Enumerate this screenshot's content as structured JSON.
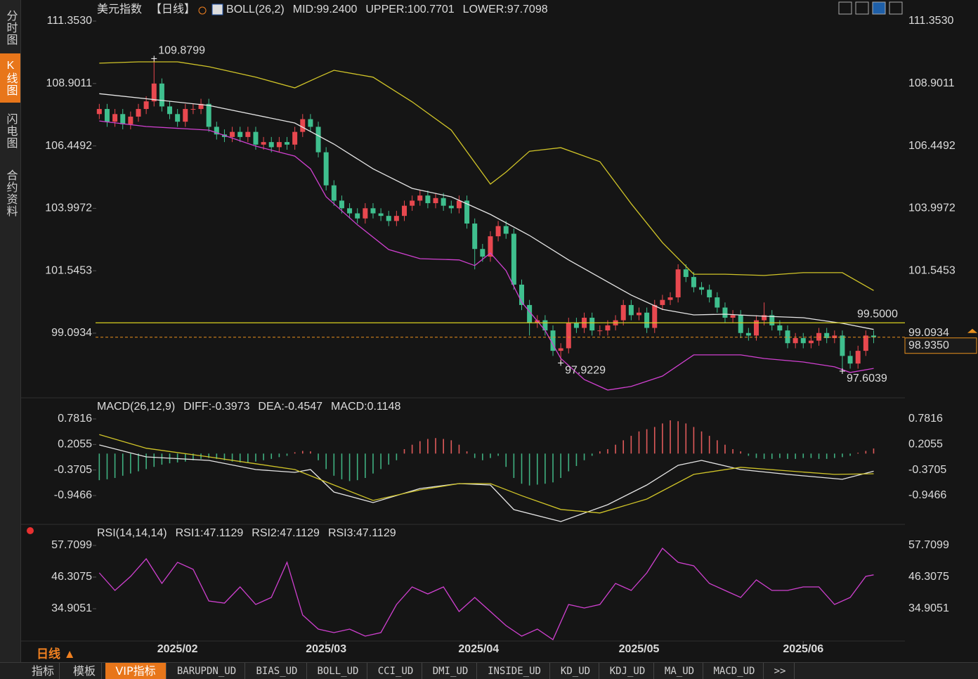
{
  "chart_data": [
    {
      "type": "candlestick",
      "title": "美元指数",
      "period": "【日线】",
      "indicator": "BOLL(26,2)",
      "up_color": "#e8484f",
      "down_color": "#3fbf8e",
      "xlim": [
        -10,
        103
      ],
      "ylim": [
        96.636,
        112.043
      ],
      "yticks": [
        {
          "value": 111.353,
          "label": "111.3530"
        },
        108.9011,
        106.4492,
        103.9972,
        101.5453,
        99.0934
      ],
      "opens": [
        107.7,
        107.9,
        107.4,
        107.7,
        107.3,
        107.6,
        107.9,
        108.2,
        108.9,
        108.0,
        107.7,
        107.4,
        107.9,
        107.9,
        108.1,
        107.2,
        106.9,
        106.8,
        107.0,
        106.8,
        107.0,
        106.5,
        106.6,
        106.4,
        106.6,
        106.5,
        107.0,
        107.5,
        107.2,
        106.2,
        104.9,
        104.3,
        104.0,
        103.8,
        103.6,
        104.0,
        103.8,
        103.7,
        103.5,
        103.7,
        104.1,
        104.3,
        104.5,
        104.2,
        104.4,
        104.1,
        104.0,
        104.3,
        103.4,
        102.4,
        102.1,
        102.9,
        103.3,
        103.0,
        101.0,
        100.2,
        99.5,
        99.6,
        99.2,
        98.4,
        98.5,
        99.5,
        99.3,
        99.7,
        99.2,
        99.2,
        99.4,
        99.6,
        100.2,
        99.8,
        99.9,
        99.3,
        100.2,
        100.4,
        100.5,
        101.6,
        101.3,
        100.9,
        100.8,
        100.5,
        100.1,
        99.7,
        99.8,
        99.1,
        99.0,
        99.6,
        99.8,
        99.4,
        99.2,
        98.7,
        98.9,
        98.7,
        98.8,
        99.1,
        98.9,
        99.0,
        98.2,
        97.9,
        98.4,
        99.0
      ],
      "highs": [
        108.1,
        108.1,
        107.9,
        107.9,
        107.8,
        108.1,
        108.4,
        109.8799,
        109.1,
        108.2,
        107.9,
        108.1,
        108.1,
        108.3,
        108.3,
        107.4,
        107.1,
        107.2,
        107.2,
        107.2,
        107.2,
        106.8,
        106.8,
        106.8,
        106.8,
        107.2,
        107.7,
        107.7,
        107.4,
        106.4,
        105.1,
        104.5,
        104.2,
        104.0,
        104.2,
        104.2,
        104.0,
        103.9,
        103.9,
        104.3,
        104.5,
        104.7,
        104.7,
        104.6,
        104.6,
        104.3,
        104.5,
        104.5,
        103.6,
        102.6,
        103.1,
        103.5,
        103.5,
        103.2,
        101.2,
        100.4,
        99.8,
        99.8,
        99.4,
        98.7,
        99.7,
        99.7,
        99.9,
        99.9,
        99.4,
        99.6,
        99.8,
        100.4,
        100.4,
        100.1,
        100.1,
        100.4,
        100.6,
        100.7,
        101.8,
        101.8,
        101.5,
        101.1,
        101.0,
        100.7,
        100.3,
        100.0,
        100.0,
        99.3,
        99.8,
        100.3,
        100.0,
        99.6,
        99.4,
        99.1,
        99.1,
        99.0,
        99.3,
        99.3,
        99.2,
        99.2,
        98.4,
        98.6,
        99.2,
        99.2
      ],
      "lows": [
        107.5,
        107.2,
        107.2,
        107.1,
        107.1,
        107.4,
        107.7,
        108.0,
        107.8,
        107.5,
        107.2,
        107.2,
        107.7,
        107.7,
        107.0,
        106.7,
        106.6,
        106.6,
        106.6,
        106.6,
        106.3,
        106.3,
        106.2,
        106.2,
        106.3,
        106.3,
        106.8,
        107.0,
        106.0,
        104.7,
        104.1,
        103.8,
        103.6,
        103.4,
        103.4,
        103.6,
        103.5,
        103.3,
        103.3,
        103.5,
        103.9,
        104.1,
        104.0,
        104.0,
        103.9,
        103.8,
        103.8,
        103.2,
        101.6,
        101.9,
        101.9,
        102.7,
        102.8,
        100.8,
        100.0,
        99.0,
        99.3,
        99.0,
        98.2,
        97.9229,
        98.3,
        99.1,
        99.1,
        99.0,
        99.0,
        99.0,
        99.2,
        99.4,
        99.6,
        99.6,
        99.1,
        99.1,
        100.0,
        100.2,
        100.3,
        101.1,
        100.7,
        100.6,
        100.3,
        99.9,
        99.5,
        99.5,
        98.9,
        98.8,
        98.8,
        99.4,
        99.2,
        99.0,
        98.5,
        98.5,
        98.5,
        98.5,
        98.6,
        98.7,
        98.7,
        97.6039,
        97.7,
        97.7,
        98.2,
        98.7
      ],
      "closes": [
        107.9,
        107.4,
        107.7,
        107.3,
        107.6,
        107.9,
        108.2,
        108.9,
        108.0,
        107.7,
        107.4,
        107.9,
        107.9,
        108.1,
        107.2,
        106.9,
        106.8,
        107.0,
        106.8,
        107.0,
        106.5,
        106.6,
        106.4,
        106.6,
        106.5,
        107.0,
        107.5,
        107.2,
        106.2,
        104.9,
        104.3,
        104.0,
        103.8,
        103.6,
        104.0,
        103.8,
        103.7,
        103.5,
        103.7,
        104.1,
        104.3,
        104.5,
        104.2,
        104.4,
        104.1,
        104.0,
        104.3,
        103.4,
        102.4,
        102.1,
        102.9,
        103.3,
        103.0,
        101.0,
        100.2,
        99.5,
        99.6,
        99.2,
        98.4,
        98.5,
        99.5,
        99.3,
        99.7,
        99.2,
        99.2,
        99.4,
        99.6,
        100.2,
        99.8,
        99.9,
        99.3,
        100.2,
        100.4,
        100.5,
        101.6,
        101.3,
        100.9,
        100.8,
        100.5,
        100.1,
        99.7,
        99.8,
        99.1,
        99.0,
        99.6,
        99.8,
        99.4,
        99.2,
        98.7,
        98.9,
        98.7,
        98.8,
        99.1,
        98.9,
        99.0,
        98.2,
        97.9,
        98.4,
        99.0,
        98.935
      ],
      "series": [
        {
          "name": "MID:99.2400",
          "color": "#e6e6e6",
          "x": [
            0,
            14,
            25,
            30,
            35,
            40,
            45,
            50,
            55,
            60,
            64,
            68,
            72,
            76,
            80,
            85,
            90,
            95,
            99
          ],
          "values": [
            108.5,
            108.04,
            107.35,
            106.52,
            105.55,
            104.78,
            104.45,
            103.76,
            102.93,
            101.97,
            101.28,
            100.59,
            100.03,
            99.81,
            99.84,
            99.76,
            99.7,
            99.48,
            99.24
          ]
        },
        {
          "name": "UPPER:100.7701",
          "color": "#d0c428",
          "x": [
            0,
            5,
            10,
            14,
            20,
            25,
            28,
            30,
            35,
            40,
            45,
            50,
            52,
            55,
            59,
            64,
            68,
            72,
            76,
            80,
            85,
            90,
            95,
            99
          ],
          "values": [
            109.7,
            109.75,
            109.75,
            109.56,
            109.15,
            108.73,
            109.15,
            109.42,
            109.15,
            108.18,
            107.07,
            104.95,
            105.42,
            106.24,
            106.38,
            105.83,
            104.18,
            102.65,
            101.41,
            101.41,
            101.36,
            101.47,
            101.47,
            100.7701
          ]
        },
        {
          "name": "LOWER:97.7098",
          "color": "#d040d0",
          "x": [
            0,
            6,
            14,
            20,
            25,
            27,
            29,
            33,
            37,
            41,
            46,
            48,
            50,
            52,
            54,
            57,
            59,
            62,
            65,
            68,
            72,
            76,
            82,
            85,
            90,
            94,
            96,
            99
          ],
          "values": [
            107.43,
            107.21,
            107.07,
            106.44,
            106.05,
            105.55,
            104.45,
            103.35,
            102.38,
            102.02,
            101.97,
            101.75,
            102.24,
            101.55,
            100.31,
            99.2,
            98.1,
            97.27,
            96.86,
            97.0,
            97.41,
            98.24,
            98.24,
            98.1,
            97.96,
            97.77,
            97.55,
            97.7098
          ]
        }
      ],
      "reference_line": {
        "value": 99.5,
        "label": "99.5000",
        "color": "#d8d020"
      },
      "last_price": {
        "value": 98.935,
        "label": "98.9350",
        "color": "#e8901e"
      },
      "annotations": [
        {
          "x": 7,
          "value": 109.8799,
          "color": "#e85a5a"
        },
        {
          "x": 59,
          "value": 97.9229,
          "color": "#3fbf8e"
        },
        {
          "x": 95,
          "value": 97.6039,
          "color": "#3fbf8e"
        }
      ]
    },
    {
      "type": "macd",
      "title": "MACD(26,12,9)",
      "xlim": [
        -10,
        103
      ],
      "ylim": [
        -1.581,
        1.194
      ],
      "yticks": [
        0.7816,
        0.2055,
        -0.3705,
        -0.9466
      ],
      "series": [
        {
          "name": "DIFF:-0.3973",
          "color": "#e6e6e6",
          "x": [
            0,
            6,
            14,
            20,
            25,
            27,
            30,
            35,
            41,
            46,
            50,
            53,
            59,
            65,
            70,
            74,
            77,
            82,
            88,
            95,
            99
          ],
          "values": [
            0.195,
            -0.075,
            -0.154,
            -0.36,
            -0.424,
            -0.36,
            -0.867,
            -1.105,
            -0.788,
            -0.677,
            -0.709,
            -1.264,
            -1.534,
            -1.153,
            -0.709,
            -0.265,
            -0.154,
            -0.36,
            -0.47,
            -0.58,
            -0.3973
          ]
        },
        {
          "name": "DEA:-0.4547",
          "color": "#d0c428",
          "x": [
            0,
            6,
            14,
            20,
            25,
            30,
            35,
            41,
            46,
            50,
            54,
            59,
            64,
            70,
            76,
            82,
            88,
            94,
            99
          ],
          "values": [
            0.43,
            0.12,
            -0.075,
            -0.23,
            -0.36,
            -0.709,
            -1.058,
            -0.82,
            -0.677,
            -0.677,
            -0.95,
            -1.26,
            -1.34,
            -1.026,
            -0.47,
            -0.31,
            -0.39,
            -0.47,
            -0.4547
          ]
        }
      ],
      "histogram": {
        "name": "MACD:0.1148",
        "color": "#d040d0",
        "up_color": "#e05a5a",
        "down_color": "#3fb080",
        "values": [
          -0.6,
          -0.58,
          -0.55,
          -0.5,
          -0.45,
          -0.4,
          -0.35,
          -0.3,
          -0.25,
          -0.22,
          -0.2,
          -0.18,
          -0.15,
          -0.12,
          -0.1,
          -0.12,
          -0.15,
          -0.18,
          -0.2,
          -0.2,
          -0.18,
          -0.15,
          -0.12,
          -0.08,
          -0.05,
          0.03,
          0.06,
          0.05,
          -0.15,
          -0.35,
          -0.5,
          -0.58,
          -0.62,
          -0.6,
          -0.55,
          -0.45,
          -0.35,
          -0.25,
          -0.15,
          0.1,
          0.2,
          0.28,
          0.33,
          0.35,
          0.33,
          0.3,
          0.2,
          0.05,
          -0.1,
          -0.15,
          -0.1,
          -0.05,
          -0.3,
          -0.55,
          -0.68,
          -0.72,
          -0.7,
          -0.68,
          -0.65,
          -0.55,
          -0.4,
          -0.28,
          -0.15,
          -0.05,
          0.05,
          0.1,
          0.2,
          0.3,
          0.4,
          0.5,
          0.55,
          0.6,
          0.68,
          0.75,
          0.73,
          0.68,
          0.6,
          0.5,
          0.4,
          0.3,
          0.2,
          0.1,
          0.05,
          -0.05,
          -0.1,
          -0.12,
          -0.12,
          -0.1,
          -0.12,
          -0.12,
          -0.1,
          -0.1,
          -0.12,
          -0.12,
          -0.1,
          -0.08,
          -0.05,
          0.02,
          0.06,
          0.1148
        ]
      }
    },
    {
      "type": "line",
      "title": "RSI(14,14,14)",
      "xlim": [
        -10,
        103
      ],
      "xticks": [
        {
          "value": 10,
          "label": "2025/02"
        },
        {
          "value": 29,
          "label": "2025/03"
        },
        {
          "value": 48.5,
          "label": "2025/04"
        },
        {
          "value": 69,
          "label": "2025/05"
        },
        {
          "value": 90,
          "label": "2025/06"
        }
      ],
      "ylim": [
        23.25,
        64.3
      ],
      "yticks": [
        57.7099,
        46.3075,
        34.9051
      ],
      "series": [
        {
          "name": "RSI1:47.1129",
          "color": "#e6e6e6"
        },
        {
          "name": "RSI2:47.1129",
          "color": "#d0c428"
        },
        {
          "name": "RSI3:47.1129",
          "color": "#d040d0",
          "x": [
            0,
            2,
            4,
            6,
            8,
            10,
            12,
            14,
            16,
            18,
            20,
            22,
            24,
            26,
            28,
            30,
            32,
            34,
            36,
            38,
            40,
            42,
            44,
            46,
            48,
            50,
            52,
            54,
            56,
            58,
            60,
            62,
            64,
            66,
            68,
            70,
            72,
            74,
            76,
            78,
            80,
            82,
            84,
            86,
            88,
            90,
            92,
            94,
            96,
            98,
            99
          ],
          "values": [
            47.83,
            41.5,
            46.56,
            52.9,
            44.03,
            51.63,
            49.1,
            37.69,
            36.93,
            42.76,
            36.43,
            38.96,
            51.63,
            32.63,
            27.56,
            26.29,
            27.56,
            25.03,
            26.29,
            36.43,
            42.76,
            40.23,
            42.76,
            33.89,
            38.96,
            33.89,
            28.83,
            25.03,
            27.56,
            23.76,
            36.43,
            35.16,
            36.43,
            44.03,
            41.5,
            47.83,
            56.7,
            51.63,
            50.36,
            44.03,
            41.5,
            38.96,
            45.3,
            41.5,
            41.5,
            42.76,
            42.76,
            36.43,
            38.96,
            46.56,
            47.1129
          ]
        }
      ]
    }
  ],
  "ui": {
    "sidebar": [
      "分时图",
      "K线图",
      "闪电图",
      "合约资料"
    ],
    "period_button": "日线 ▲",
    "tabs": [
      "指标",
      "模板",
      "VIP指标",
      "BARUPDN_UD",
      "BIAS_UD",
      "BOLL_UD",
      "CCI_UD",
      "DMI_UD",
      "INSIDE_UD",
      "KD_UD",
      "KDJ_UD",
      "MA_UD",
      "MACD_UD",
      ">>"
    ]
  }
}
